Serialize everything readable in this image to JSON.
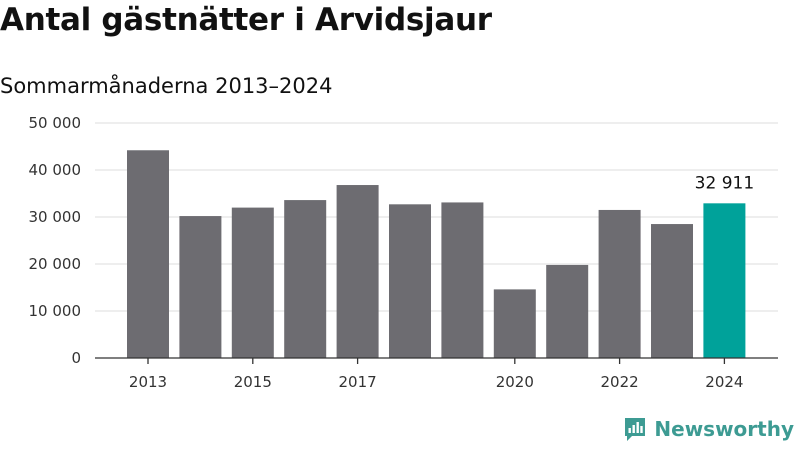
{
  "chart_data": {
    "type": "bar",
    "title": "Antal gästnätter i Arvidsjaur",
    "subtitle": "Sommarmånaderna 2013–2024",
    "categories": [
      "2013",
      "2014",
      "2015",
      "2016",
      "2017",
      "2018",
      "2019",
      "2020",
      "2021",
      "2022",
      "2023",
      "2024"
    ],
    "x_tick_labels": [
      "2013",
      "2015",
      "2017",
      "2020",
      "2022",
      "2024"
    ],
    "values": [
      44200,
      30200,
      32000,
      33600,
      36800,
      32700,
      33100,
      14600,
      19800,
      31500,
      28500,
      32911
    ],
    "ylim": [
      0,
      50000
    ],
    "y_ticks": [
      0,
      10000,
      20000,
      30000,
      40000,
      50000
    ],
    "y_tick_labels": [
      "0",
      "10 000",
      "20 000",
      "30 000",
      "40 000",
      "50 000"
    ],
    "highlight_index": 11,
    "highlight_label": "32 911",
    "grid": true,
    "colors": {
      "bar": "#6d6c71",
      "highlight": "#00a29a",
      "grid": "#dcdcdc"
    }
  },
  "brand": {
    "name": "Newsworthy",
    "color": "#3d9b93",
    "icon": "bar-chart-logo-icon"
  }
}
